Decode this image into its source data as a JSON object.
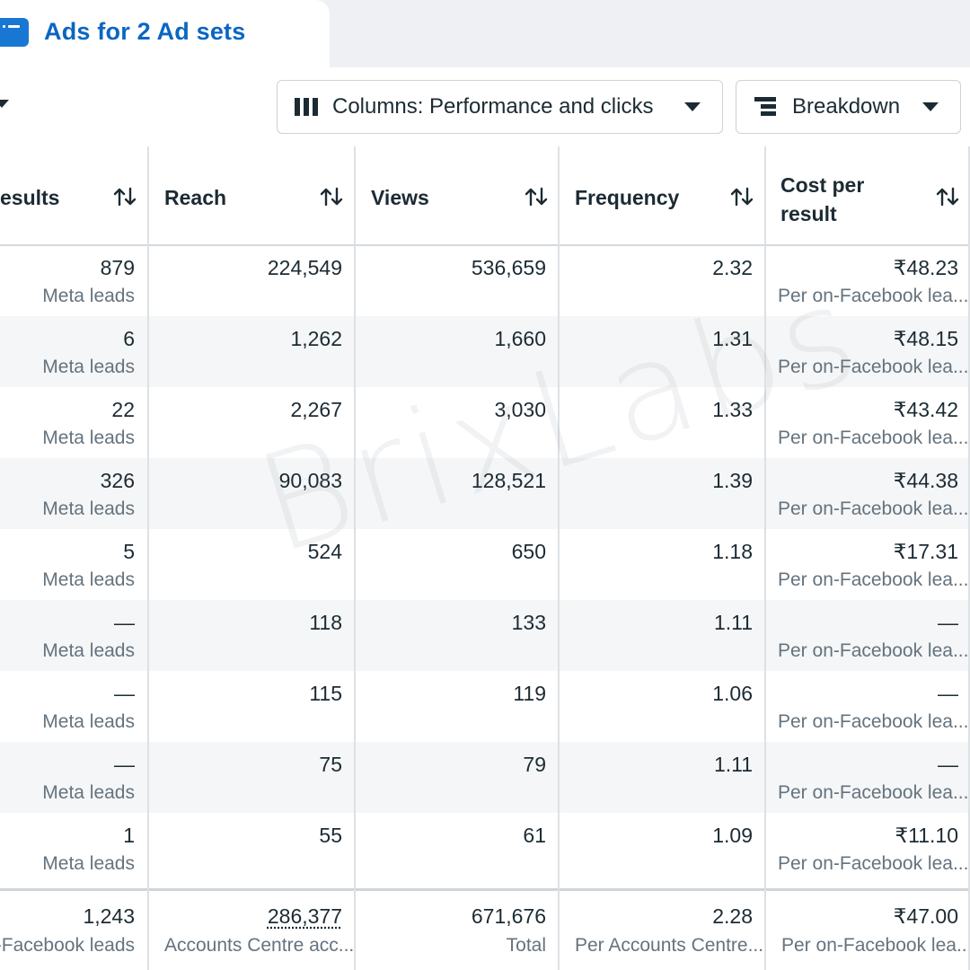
{
  "tab": {
    "label": "Ads for 2 Ad sets"
  },
  "toolbar": {
    "columns_label": "Columns: Performance and clicks",
    "breakdown_label": "Breakdown"
  },
  "table": {
    "headers": {
      "results": "esults",
      "reach": "Reach",
      "views": "Views",
      "frequency": "Frequency",
      "cost_line1": "Cost per",
      "cost_line2": "result"
    },
    "rows": [
      {
        "results": "879",
        "results_sub": "Meta leads",
        "reach": "224,549",
        "views": "536,659",
        "frequency": "2.32",
        "cost": "₹48.23",
        "cost_sub": "Per on-Facebook lea..."
      },
      {
        "results": "6",
        "results_sub": "Meta leads",
        "reach": "1,262",
        "views": "1,660",
        "frequency": "1.31",
        "cost": "₹48.15",
        "cost_sub": "Per on-Facebook lea..."
      },
      {
        "results": "22",
        "results_sub": "Meta leads",
        "reach": "2,267",
        "views": "3,030",
        "frequency": "1.33",
        "cost": "₹43.42",
        "cost_sub": "Per on-Facebook lea..."
      },
      {
        "results": "326",
        "results_sub": "Meta leads",
        "reach": "90,083",
        "views": "128,521",
        "frequency": "1.39",
        "cost": "₹44.38",
        "cost_sub": "Per on-Facebook lea..."
      },
      {
        "results": "5",
        "results_sub": "Meta leads",
        "reach": "524",
        "views": "650",
        "frequency": "1.18",
        "cost": "₹17.31",
        "cost_sub": "Per on-Facebook lea..."
      },
      {
        "results": "—",
        "results_sub": "Meta leads",
        "reach": "118",
        "views": "133",
        "frequency": "1.11",
        "cost": "—",
        "cost_sub": "Per on-Facebook lea..."
      },
      {
        "results": "—",
        "results_sub": "Meta leads",
        "reach": "115",
        "views": "119",
        "frequency": "1.06",
        "cost": "—",
        "cost_sub": "Per on-Facebook lea..."
      },
      {
        "results": "—",
        "results_sub": "Meta leads",
        "reach": "75",
        "views": "79",
        "frequency": "1.11",
        "cost": "—",
        "cost_sub": "Per on-Facebook lea..."
      },
      {
        "results": "1",
        "results_sub": "Meta leads",
        "reach": "55",
        "views": "61",
        "frequency": "1.09",
        "cost": "₹11.10",
        "cost_sub": "Per on-Facebook lea..."
      }
    ],
    "totals": {
      "results": "1,243",
      "results_sub": "n-Facebook leads",
      "reach": "286,377",
      "reach_sub": "Accounts Centre acc...",
      "views": "671,676",
      "views_sub": "Total",
      "frequency": "2.28",
      "frequency_sub": "Per Accounts Centre...",
      "cost": "₹47.00",
      "cost_sub": "Per on-Facebook lea..."
    }
  },
  "watermark": "BrixLabs",
  "colors": {
    "accent": "#0a66c2",
    "tab_icon": "#1877d2",
    "row_shade": "#f5f6f7",
    "muted_text": "#65737e"
  }
}
